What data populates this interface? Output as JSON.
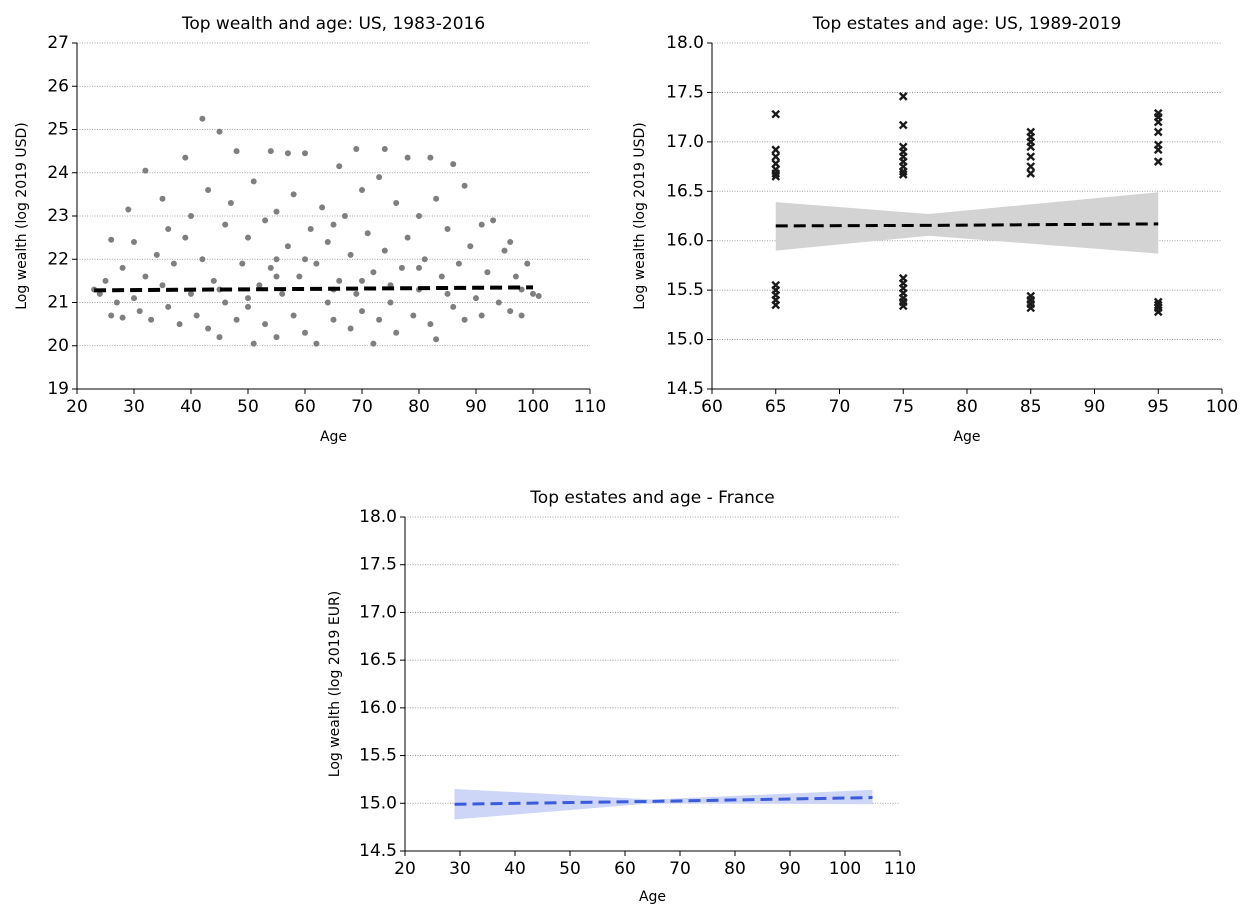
{
  "chart_data": [
    {
      "type": "scatter",
      "title": "Top wealth and age: US, 1983-2016",
      "x_label": "Age",
      "y_label": "Log wealth (log 2019 USD)",
      "xlim": [
        20,
        110
      ],
      "ylim": [
        19,
        27
      ],
      "xticks": [
        20,
        30,
        40,
        50,
        60,
        70,
        80,
        90,
        100,
        110
      ],
      "yticks": [
        19,
        20,
        21,
        22,
        23,
        24,
        25,
        26,
        27
      ],
      "grid": "y",
      "series": [
        {
          "type": "scatter",
          "marker": "o",
          "color": "#7f7f7f",
          "x": [
            23,
            24,
            25,
            26,
            26,
            27,
            28,
            28,
            29,
            30,
            30,
            31,
            32,
            32,
            33,
            34,
            35,
            35,
            36,
            36,
            37,
            38,
            39,
            39,
            40,
            40,
            41,
            42,
            42,
            43,
            43,
            44,
            45,
            45,
            46,
            46,
            47,
            48,
            48,
            49,
            50,
            50,
            51,
            51,
            52,
            53,
            53,
            54,
            54,
            55,
            55,
            56,
            57,
            57,
            58,
            58,
            59,
            60,
            60,
            61,
            62,
            62,
            63,
            64,
            64,
            65,
            66,
            66,
            67,
            68,
            68,
            69,
            69,
            70,
            70,
            71,
            72,
            72,
            73,
            73,
            74,
            74,
            75,
            76,
            76,
            77,
            78,
            78,
            79,
            80,
            80,
            81,
            82,
            82,
            83,
            83,
            84,
            85,
            86,
            86,
            87,
            88,
            88,
            89,
            90,
            91,
            91,
            92,
            93,
            94,
            95,
            96,
            96,
            97,
            98,
            98,
            99,
            100,
            101,
            65,
            45,
            55,
            75,
            85,
            60,
            70,
            50,
            80,
            65,
            55
          ],
          "y": [
            21.3,
            21.2,
            21.5,
            20.7,
            22.45,
            21.0,
            20.65,
            21.8,
            23.15,
            22.4,
            21.1,
            20.8,
            24.05,
            21.6,
            20.6,
            22.1,
            23.4,
            21.4,
            22.7,
            20.9,
            21.9,
            20.5,
            24.35,
            22.5,
            21.2,
            23.0,
            20.7,
            25.25,
            22.0,
            23.6,
            20.4,
            21.5,
            24.95,
            20.2,
            22.8,
            21.0,
            23.3,
            24.5,
            20.6,
            21.9,
            22.5,
            20.9,
            20.05,
            23.8,
            21.4,
            22.9,
            20.5,
            24.5,
            21.8,
            20.2,
            23.1,
            21.2,
            24.45,
            22.3,
            20.7,
            23.5,
            21.6,
            24.45,
            20.3,
            22.7,
            20.05,
            21.9,
            23.2,
            21.0,
            22.4,
            20.6,
            24.15,
            21.5,
            23.0,
            20.4,
            22.1,
            24.55,
            21.2,
            23.6,
            20.8,
            22.6,
            20.05,
            21.7,
            23.9,
            20.6,
            24.55,
            22.2,
            21.0,
            23.3,
            20.3,
            21.8,
            24.35,
            22.5,
            20.7,
            23.0,
            21.3,
            22.0,
            24.35,
            20.5,
            20.15,
            23.4,
            21.6,
            22.7,
            24.2,
            20.9,
            21.9,
            23.7,
            20.6,
            22.3,
            21.1,
            22.8,
            20.7,
            21.7,
            22.9,
            21.0,
            22.2,
            22.4,
            20.8,
            21.6,
            21.3,
            20.7,
            21.9,
            21.2,
            21.15,
            21.3,
            21.3,
            21.6,
            21.4,
            21.2,
            22.0,
            21.5,
            21.1,
            21.8,
            22.8,
            22.0
          ]
        },
        {
          "type": "line",
          "color": "#000000",
          "dashed": true,
          "x": [
            23,
            100
          ],
          "y": [
            21.28,
            21.35
          ]
        }
      ]
    },
    {
      "type": "scatter",
      "title": "Top estates and age: US, 1989-2019",
      "x_label": "Age",
      "y_label": "Log wealth (log 2019 USD)",
      "xlim": [
        60,
        100
      ],
      "ylim": [
        14.5,
        18
      ],
      "xticks": [
        60,
        65,
        70,
        75,
        80,
        85,
        90,
        95,
        100
      ],
      "yticks": [
        14.5,
        {
          "value": 15,
          "label": "15.0"
        },
        15.5,
        {
          "value": 16,
          "label": "16.0"
        },
        16.5,
        {
          "value": 17,
          "label": "17.0"
        },
        17.5,
        {
          "value": 18,
          "label": "18.0"
        }
      ],
      "grid": "y",
      "series": [
        {
          "type": "scatter",
          "marker": "x",
          "color": "#1a1a1a",
          "x": [
            65,
            65,
            65,
            65,
            65,
            65,
            65,
            65,
            65,
            65,
            65,
            65,
            75,
            75,
            75,
            75,
            75,
            75,
            75,
            75,
            75,
            75,
            75,
            75,
            75,
            75,
            75,
            75,
            85,
            85,
            85,
            85,
            85,
            85,
            85,
            85,
            85,
            85,
            85,
            95,
            95,
            95,
            95,
            95,
            95,
            95,
            95,
            95,
            95,
            95
          ],
          "y": [
            17.28,
            16.92,
            16.85,
            16.78,
            16.72,
            16.68,
            16.65,
            15.55,
            15.5,
            15.45,
            15.4,
            15.35,
            17.46,
            17.17,
            16.95,
            16.9,
            16.85,
            16.8,
            16.75,
            16.7,
            16.67,
            15.62,
            15.57,
            15.52,
            15.47,
            15.42,
            15.38,
            15.34,
            17.1,
            17.05,
            17.0,
            16.95,
            16.85,
            16.75,
            16.68,
            15.44,
            15.4,
            15.36,
            15.32,
            17.29,
            17.25,
            17.2,
            17.1,
            16.97,
            16.92,
            16.8,
            15.38,
            15.35,
            15.32,
            15.28
          ]
        },
        {
          "type": "line",
          "color": "#000000",
          "band_color": "#d3d3d3",
          "dashed": true,
          "x": [
            65,
            77,
            95
          ],
          "y": [
            16.15,
            16.155,
            16.17
          ],
          "lower": [
            15.9,
            16.05,
            15.87
          ],
          "upper": [
            16.39,
            16.27,
            16.49
          ]
        }
      ]
    },
    {
      "type": "line",
      "title": "Top estates and age - France",
      "x_label": "Age",
      "y_label": "Log wealth (log 2019 EUR)",
      "xlim": [
        20,
        110
      ],
      "ylim": [
        14.5,
        18
      ],
      "xticks": [
        20,
        30,
        40,
        50,
        60,
        70,
        80,
        90,
        100,
        110
      ],
      "yticks": [
        14.5,
        {
          "value": 15,
          "label": "15.0"
        },
        15.5,
        {
          "value": 16,
          "label": "16.0"
        },
        16.5,
        {
          "value": 17,
          "label": "17.0"
        },
        17.5,
        {
          "value": 18,
          "label": "18.0"
        }
      ],
      "grid": "y",
      "series": [
        {
          "type": "line",
          "color": "#3b5bdb",
          "band_color": "#cdd6f6",
          "dashed": true,
          "x": [
            29,
            65,
            105
          ],
          "y": [
            14.99,
            15.02,
            15.06
          ],
          "lower": [
            14.83,
            15.0,
            14.99
          ],
          "upper": [
            15.15,
            15.04,
            15.14
          ]
        }
      ]
    }
  ]
}
